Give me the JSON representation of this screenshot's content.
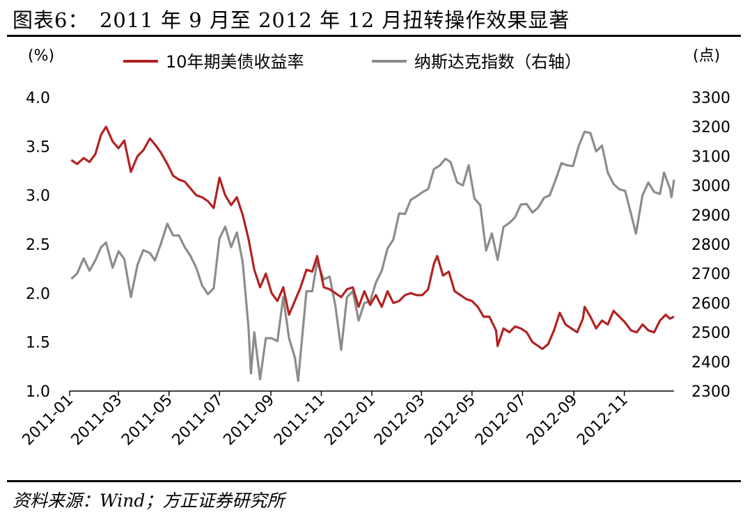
{
  "title": "图表6：　2011 年 9 月至 2012 年 12 月扭转操作效果显著",
  "source": "资料来源：Wind；方正证券研究所",
  "colors": {
    "treasury": "#B22222",
    "nasdaq": "#8C8C8C"
  },
  "chart_data": {
    "type": "line",
    "left_unit": "(%)",
    "right_unit": "(点)",
    "left_axis": {
      "min": 1.0,
      "max": 4.0,
      "ticks": [
        "1.0",
        "1.5",
        "2.0",
        "2.5",
        "3.0",
        "3.5",
        "4.0"
      ]
    },
    "right_axis": {
      "min": 2300,
      "max": 3300,
      "ticks": [
        "2300",
        "2400",
        "2500",
        "2600",
        "2700",
        "2800",
        "2900",
        "3000",
        "3100",
        "3200",
        "3300"
      ]
    },
    "x_ticks": [
      "2011-01",
      "2011-03",
      "2011-05",
      "2011-07",
      "2011-09",
      "2011-11",
      "2012-01",
      "2012-03",
      "2012-05",
      "2012-07",
      "2012-09",
      "2012-11"
    ],
    "legend_position": "top",
    "series": [
      {
        "name": "10年期美债收益率",
        "axis": "left",
        "points": [
          [
            "2011-01-03",
            3.36
          ],
          [
            "2011-01-10",
            3.32
          ],
          [
            "2011-01-18",
            3.38
          ],
          [
            "2011-01-25",
            3.34
          ],
          [
            "2011-02-01",
            3.42
          ],
          [
            "2011-02-08",
            3.62
          ],
          [
            "2011-02-14",
            3.7
          ],
          [
            "2011-02-22",
            3.55
          ],
          [
            "2011-03-01",
            3.48
          ],
          [
            "2011-03-08",
            3.56
          ],
          [
            "2011-03-16",
            3.24
          ],
          [
            "2011-03-24",
            3.4
          ],
          [
            "2011-03-31",
            3.46
          ],
          [
            "2011-04-08",
            3.58
          ],
          [
            "2011-04-14",
            3.52
          ],
          [
            "2011-04-21",
            3.44
          ],
          [
            "2011-04-29",
            3.32
          ],
          [
            "2011-05-06",
            3.2
          ],
          [
            "2011-05-13",
            3.16
          ],
          [
            "2011-05-20",
            3.14
          ],
          [
            "2011-05-27",
            3.07
          ],
          [
            "2011-06-03",
            3.0
          ],
          [
            "2011-06-10",
            2.98
          ],
          [
            "2011-06-17",
            2.94
          ],
          [
            "2011-06-24",
            2.87
          ],
          [
            "2011-07-01",
            3.18
          ],
          [
            "2011-07-08",
            3.0
          ],
          [
            "2011-07-15",
            2.9
          ],
          [
            "2011-07-22",
            2.98
          ],
          [
            "2011-07-29",
            2.8
          ],
          [
            "2011-08-05",
            2.56
          ],
          [
            "2011-08-12",
            2.24
          ],
          [
            "2011-08-19",
            2.06
          ],
          [
            "2011-08-26",
            2.2
          ],
          [
            "2011-09-02",
            2.0
          ],
          [
            "2011-09-09",
            1.92
          ],
          [
            "2011-09-16",
            2.06
          ],
          [
            "2011-09-23",
            1.78
          ],
          [
            "2011-09-30",
            1.92
          ],
          [
            "2011-10-07",
            2.06
          ],
          [
            "2011-10-14",
            2.24
          ],
          [
            "2011-10-21",
            2.22
          ],
          [
            "2011-10-27",
            2.38
          ],
          [
            "2011-11-04",
            2.06
          ],
          [
            "2011-11-11",
            2.04
          ],
          [
            "2011-11-18",
            2.0
          ],
          [
            "2011-11-25",
            1.96
          ],
          [
            "2011-12-02",
            2.04
          ],
          [
            "2011-12-09",
            2.06
          ],
          [
            "2011-12-16",
            1.86
          ],
          [
            "2011-12-23",
            2.02
          ],
          [
            "2011-12-30",
            1.88
          ],
          [
            "2012-01-06",
            1.98
          ],
          [
            "2012-01-13",
            1.86
          ],
          [
            "2012-01-20",
            2.02
          ],
          [
            "2012-01-27",
            1.9
          ],
          [
            "2012-02-03",
            1.92
          ],
          [
            "2012-02-10",
            1.98
          ],
          [
            "2012-02-17",
            2.0
          ],
          [
            "2012-02-24",
            1.98
          ],
          [
            "2012-03-02",
            1.98
          ],
          [
            "2012-03-09",
            2.04
          ],
          [
            "2012-03-16",
            2.3
          ],
          [
            "2012-03-20",
            2.38
          ],
          [
            "2012-03-27",
            2.18
          ],
          [
            "2012-04-03",
            2.22
          ],
          [
            "2012-04-10",
            2.02
          ],
          [
            "2012-04-17",
            1.98
          ],
          [
            "2012-04-24",
            1.94
          ],
          [
            "2012-05-01",
            1.92
          ],
          [
            "2012-05-08",
            1.86
          ],
          [
            "2012-05-15",
            1.76
          ],
          [
            "2012-05-22",
            1.76
          ],
          [
            "2012-05-30",
            1.62
          ],
          [
            "2012-06-01",
            1.46
          ],
          [
            "2012-06-08",
            1.64
          ],
          [
            "2012-06-15",
            1.6
          ],
          [
            "2012-06-22",
            1.66
          ],
          [
            "2012-06-29",
            1.64
          ],
          [
            "2012-07-06",
            1.6
          ],
          [
            "2012-07-13",
            1.5
          ],
          [
            "2012-07-20",
            1.46
          ],
          [
            "2012-07-25",
            1.43
          ],
          [
            "2012-08-01",
            1.48
          ],
          [
            "2012-08-08",
            1.62
          ],
          [
            "2012-08-15",
            1.8
          ],
          [
            "2012-08-22",
            1.68
          ],
          [
            "2012-08-29",
            1.64
          ],
          [
            "2012-09-05",
            1.6
          ],
          [
            "2012-09-12",
            1.74
          ],
          [
            "2012-09-14",
            1.86
          ],
          [
            "2012-09-21",
            1.76
          ],
          [
            "2012-09-28",
            1.64
          ],
          [
            "2012-10-05",
            1.72
          ],
          [
            "2012-10-12",
            1.68
          ],
          [
            "2012-10-19",
            1.82
          ],
          [
            "2012-10-26",
            1.76
          ],
          [
            "2012-11-02",
            1.7
          ],
          [
            "2012-11-09",
            1.62
          ],
          [
            "2012-11-16",
            1.6
          ],
          [
            "2012-11-23",
            1.68
          ],
          [
            "2012-11-30",
            1.62
          ],
          [
            "2012-12-07",
            1.6
          ],
          [
            "2012-12-14",
            1.72
          ],
          [
            "2012-12-21",
            1.78
          ],
          [
            "2012-12-26",
            1.74
          ],
          [
            "2012-12-31",
            1.76
          ]
        ]
      },
      {
        "name": "纳斯达克指数（右轴）",
        "axis": "right",
        "points": [
          [
            "2011-01-03",
            2682
          ],
          [
            "2011-01-10",
            2700
          ],
          [
            "2011-01-18",
            2752
          ],
          [
            "2011-01-25",
            2710
          ],
          [
            "2011-02-01",
            2745
          ],
          [
            "2011-02-08",
            2790
          ],
          [
            "2011-02-14",
            2806
          ],
          [
            "2011-02-22",
            2720
          ],
          [
            "2011-03-01",
            2776
          ],
          [
            "2011-03-08",
            2750
          ],
          [
            "2011-03-16",
            2620
          ],
          [
            "2011-03-24",
            2730
          ],
          [
            "2011-03-31",
            2780
          ],
          [
            "2011-04-08",
            2770
          ],
          [
            "2011-04-14",
            2745
          ],
          [
            "2011-04-21",
            2800
          ],
          [
            "2011-04-29",
            2870
          ],
          [
            "2011-05-06",
            2830
          ],
          [
            "2011-05-13",
            2830
          ],
          [
            "2011-05-20",
            2790
          ],
          [
            "2011-05-27",
            2760
          ],
          [
            "2011-06-03",
            2720
          ],
          [
            "2011-06-10",
            2660
          ],
          [
            "2011-06-17",
            2630
          ],
          [
            "2011-06-24",
            2650
          ],
          [
            "2011-07-01",
            2820
          ],
          [
            "2011-07-08",
            2860
          ],
          [
            "2011-07-15",
            2790
          ],
          [
            "2011-07-22",
            2840
          ],
          [
            "2011-07-29",
            2740
          ],
          [
            "2011-08-05",
            2520
          ],
          [
            "2011-08-08",
            2360
          ],
          [
            "2011-08-12",
            2500
          ],
          [
            "2011-08-19",
            2340
          ],
          [
            "2011-08-26",
            2480
          ],
          [
            "2011-09-02",
            2480
          ],
          [
            "2011-09-09",
            2470
          ],
          [
            "2011-09-16",
            2620
          ],
          [
            "2011-09-23",
            2480
          ],
          [
            "2011-09-30",
            2415
          ],
          [
            "2011-10-04",
            2335
          ],
          [
            "2011-10-14",
            2640
          ],
          [
            "2011-10-21",
            2640
          ],
          [
            "2011-10-27",
            2740
          ],
          [
            "2011-11-04",
            2680
          ],
          [
            "2011-11-11",
            2690
          ],
          [
            "2011-11-18",
            2590
          ],
          [
            "2011-11-25",
            2440
          ],
          [
            "2011-12-02",
            2620
          ],
          [
            "2011-12-09",
            2640
          ],
          [
            "2011-12-16",
            2540
          ],
          [
            "2011-12-23",
            2600
          ],
          [
            "2011-12-30",
            2605
          ],
          [
            "2012-01-06",
            2670
          ],
          [
            "2012-01-13",
            2710
          ],
          [
            "2012-01-20",
            2786
          ],
          [
            "2012-01-27",
            2816
          ],
          [
            "2012-02-03",
            2905
          ],
          [
            "2012-02-10",
            2903
          ],
          [
            "2012-02-17",
            2951
          ],
          [
            "2012-02-24",
            2963
          ],
          [
            "2012-03-02",
            2977
          ],
          [
            "2012-03-09",
            2988
          ],
          [
            "2012-03-16",
            3056
          ],
          [
            "2012-03-23",
            3068
          ],
          [
            "2012-03-30",
            3091
          ],
          [
            "2012-04-05",
            3080
          ],
          [
            "2012-04-13",
            3011
          ],
          [
            "2012-04-20",
            3000
          ],
          [
            "2012-04-27",
            3069
          ],
          [
            "2012-05-04",
            2956
          ],
          [
            "2012-05-11",
            2933
          ],
          [
            "2012-05-18",
            2778
          ],
          [
            "2012-05-25",
            2837
          ],
          [
            "2012-06-01",
            2747
          ],
          [
            "2012-06-08",
            2859
          ],
          [
            "2012-06-15",
            2872
          ],
          [
            "2012-06-22",
            2892
          ],
          [
            "2012-06-29",
            2935
          ],
          [
            "2012-07-06",
            2937
          ],
          [
            "2012-07-13",
            2908
          ],
          [
            "2012-07-20",
            2925
          ],
          [
            "2012-07-27",
            2958
          ],
          [
            "2012-08-03",
            2967
          ],
          [
            "2012-08-10",
            3020
          ],
          [
            "2012-08-17",
            3076
          ],
          [
            "2012-08-24",
            3069
          ],
          [
            "2012-08-31",
            3066
          ],
          [
            "2012-09-07",
            3136
          ],
          [
            "2012-09-14",
            3183
          ],
          [
            "2012-09-21",
            3179
          ],
          [
            "2012-09-28",
            3116
          ],
          [
            "2012-10-05",
            3136
          ],
          [
            "2012-10-12",
            3044
          ],
          [
            "2012-10-19",
            3005
          ],
          [
            "2012-10-26",
            2987
          ],
          [
            "2012-11-02",
            2982
          ],
          [
            "2012-11-09",
            2904
          ],
          [
            "2012-11-15",
            2836
          ],
          [
            "2012-11-23",
            2967
          ],
          [
            "2012-11-30",
            3010
          ],
          [
            "2012-12-07",
            2978
          ],
          [
            "2012-12-14",
            2971
          ],
          [
            "2012-12-19",
            3044
          ],
          [
            "2012-12-26",
            2990
          ],
          [
            "2012-12-28",
            2960
          ],
          [
            "2012-12-31",
            3020
          ]
        ]
      }
    ]
  }
}
